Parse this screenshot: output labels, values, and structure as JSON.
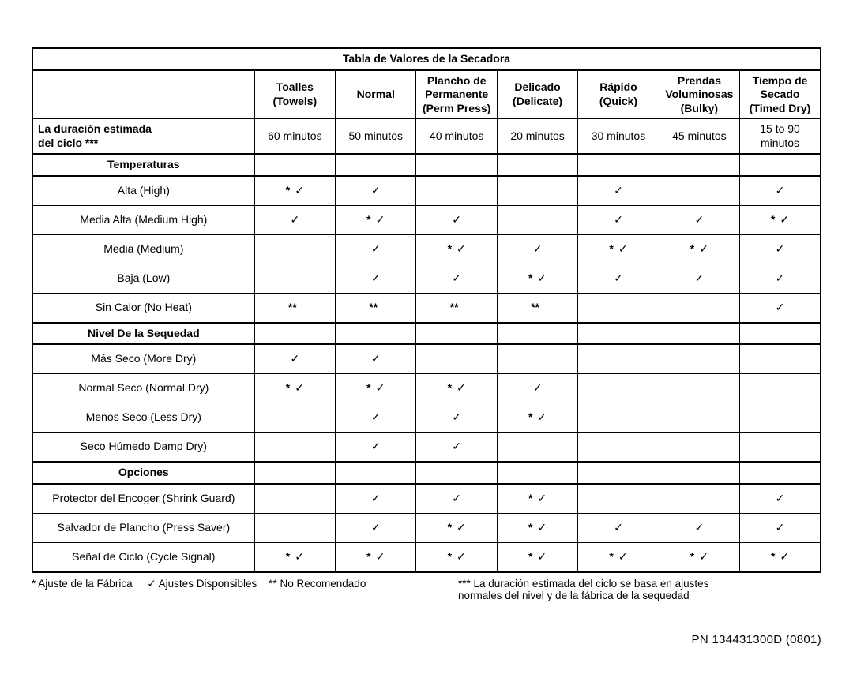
{
  "title": "Tabla de Valores de la Secadora",
  "columns": [
    {
      "line1": "",
      "line2": "Toalles",
      "line3": "Towels"
    },
    {
      "line1": "",
      "line2": "",
      "line3": "Normal"
    },
    {
      "line1": "Plancho de",
      "line2": "Permanente",
      "line3": "Perm Press"
    },
    {
      "line1": "",
      "line2": "Delicado",
      "line3": "Delicate"
    },
    {
      "line1": "",
      "line2": "Rápido",
      "line3": "Quick"
    },
    {
      "line1": "Prendas",
      "line2": "Voluminosas",
      "line3": "Bulky"
    },
    {
      "line1": "Tiempo de",
      "line2": "Secado",
      "line3": "Timed Dry"
    }
  ],
  "duration": {
    "label_line1": "La duración estimada",
    "label_line2": "del ciclo ***",
    "values": [
      "60 minutos",
      "50 minutos",
      "40 minutos",
      "20 minutos",
      "30 minutos",
      "45 minutos",
      "15 to 90\nminutos"
    ]
  },
  "check_glyph": "✓",
  "sections": [
    {
      "heading": "Temperaturas",
      "rows": [
        {
          "label": "Alta (High)",
          "cells": [
            "*c",
            "c",
            "",
            "",
            "c",
            "",
            "c"
          ]
        },
        {
          "label": "Media Alta (Medium High)",
          "cells": [
            "c",
            "*c",
            "c",
            "",
            "c",
            "c",
            "*c"
          ]
        },
        {
          "label": "Media (Medium)",
          "cells": [
            "",
            "c",
            "*c",
            "c",
            "*c",
            "*c",
            "c"
          ]
        },
        {
          "label": "Baja (Low)",
          "cells": [
            "",
            "c",
            "c",
            "*c",
            "c",
            "c",
            "c"
          ]
        },
        {
          "label": "Sin Calor (No Heat)",
          "cells": [
            "**",
            "**",
            "**",
            "**",
            "",
            "",
            "c"
          ]
        }
      ]
    },
    {
      "heading": "Nivel De la Sequedad",
      "rows": [
        {
          "label": "Más Seco (More Dry)",
          "cells": [
            "c",
            "c",
            "",
            "",
            "",
            "",
            ""
          ]
        },
        {
          "label": "Normal Seco (Normal Dry)",
          "cells": [
            "*c",
            "*c",
            "*c",
            "c",
            "",
            "",
            ""
          ]
        },
        {
          "label": "Menos Seco (Less Dry)",
          "cells": [
            "",
            "c",
            "c",
            "*c",
            "",
            "",
            ""
          ]
        },
        {
          "label": "Seco Húmedo Damp Dry)",
          "cells": [
            "",
            "c",
            "c",
            "",
            "",
            "",
            ""
          ]
        }
      ]
    },
    {
      "heading": "Opciones",
      "rows": [
        {
          "label": "Protector del Encoger (Shrink Guard)",
          "cells": [
            "",
            "c",
            "c",
            "*c",
            "",
            "",
            "c"
          ]
        },
        {
          "label": "Salvador de Plancho (Press Saver)",
          "cells": [
            "",
            "c",
            "*c",
            "*c",
            "c",
            "c",
            "c"
          ]
        },
        {
          "label": "Señal de Ciclo (Cycle Signal)",
          "cells": [
            "*c",
            "*c",
            "*c",
            "*c",
            "*c",
            "*c",
            "*c"
          ]
        }
      ]
    }
  ],
  "legend": {
    "factory": "* Ajuste de la Fábrica",
    "available_prefix": "✓",
    "available": " Ajustes Disponsibles",
    "not_recommended": "** No Recomendado",
    "note_line1": "*** La duración estimada del ciclo se basa en ajustes",
    "note_line2": "normales del nivel y de la fábrica de la sequedad"
  },
  "part_number": "PN 134431300D (0801)"
}
